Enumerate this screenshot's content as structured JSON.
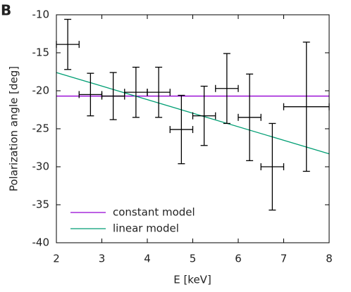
{
  "chart_data": {
    "type": "scatter",
    "panel_label": "B",
    "xlabel": "E [keV]",
    "ylabel": "Polarization angle [deg]",
    "xlim": [
      2,
      8
    ],
    "ylim": [
      -40,
      -10
    ],
    "xticks": [
      2,
      3,
      4,
      5,
      6,
      7,
      8
    ],
    "yticks": [
      -40,
      -35,
      -30,
      -25,
      -20,
      -15,
      -10
    ],
    "color": "#000000",
    "x": [
      2.25,
      2.75,
      3.25,
      3.75,
      4.25,
      4.75,
      5.25,
      5.75,
      6.25,
      6.75,
      7.5
    ],
    "xerr": [
      0.25,
      0.25,
      0.25,
      0.25,
      0.25,
      0.25,
      0.25,
      0.25,
      0.25,
      0.25,
      0.5
    ],
    "values": [
      -13.9,
      -20.5,
      -20.7,
      -20.2,
      -20.2,
      -25.1,
      -23.3,
      -19.7,
      -23.5,
      -30.0,
      -22.1
    ],
    "yerr": [
      3.3,
      2.8,
      3.1,
      3.3,
      3.3,
      4.5,
      3.9,
      4.6,
      5.7,
      5.7,
      8.5
    ],
    "lines": [
      {
        "name": "constant model",
        "color": "#9400d3",
        "x": [
          2,
          8
        ],
        "values": [
          -20.7,
          -20.7
        ]
      },
      {
        "name": "linear model",
        "color": "#009e73",
        "x": [
          2,
          8
        ],
        "values": [
          -17.6,
          -28.3
        ]
      }
    ],
    "legend": "lower left"
  }
}
